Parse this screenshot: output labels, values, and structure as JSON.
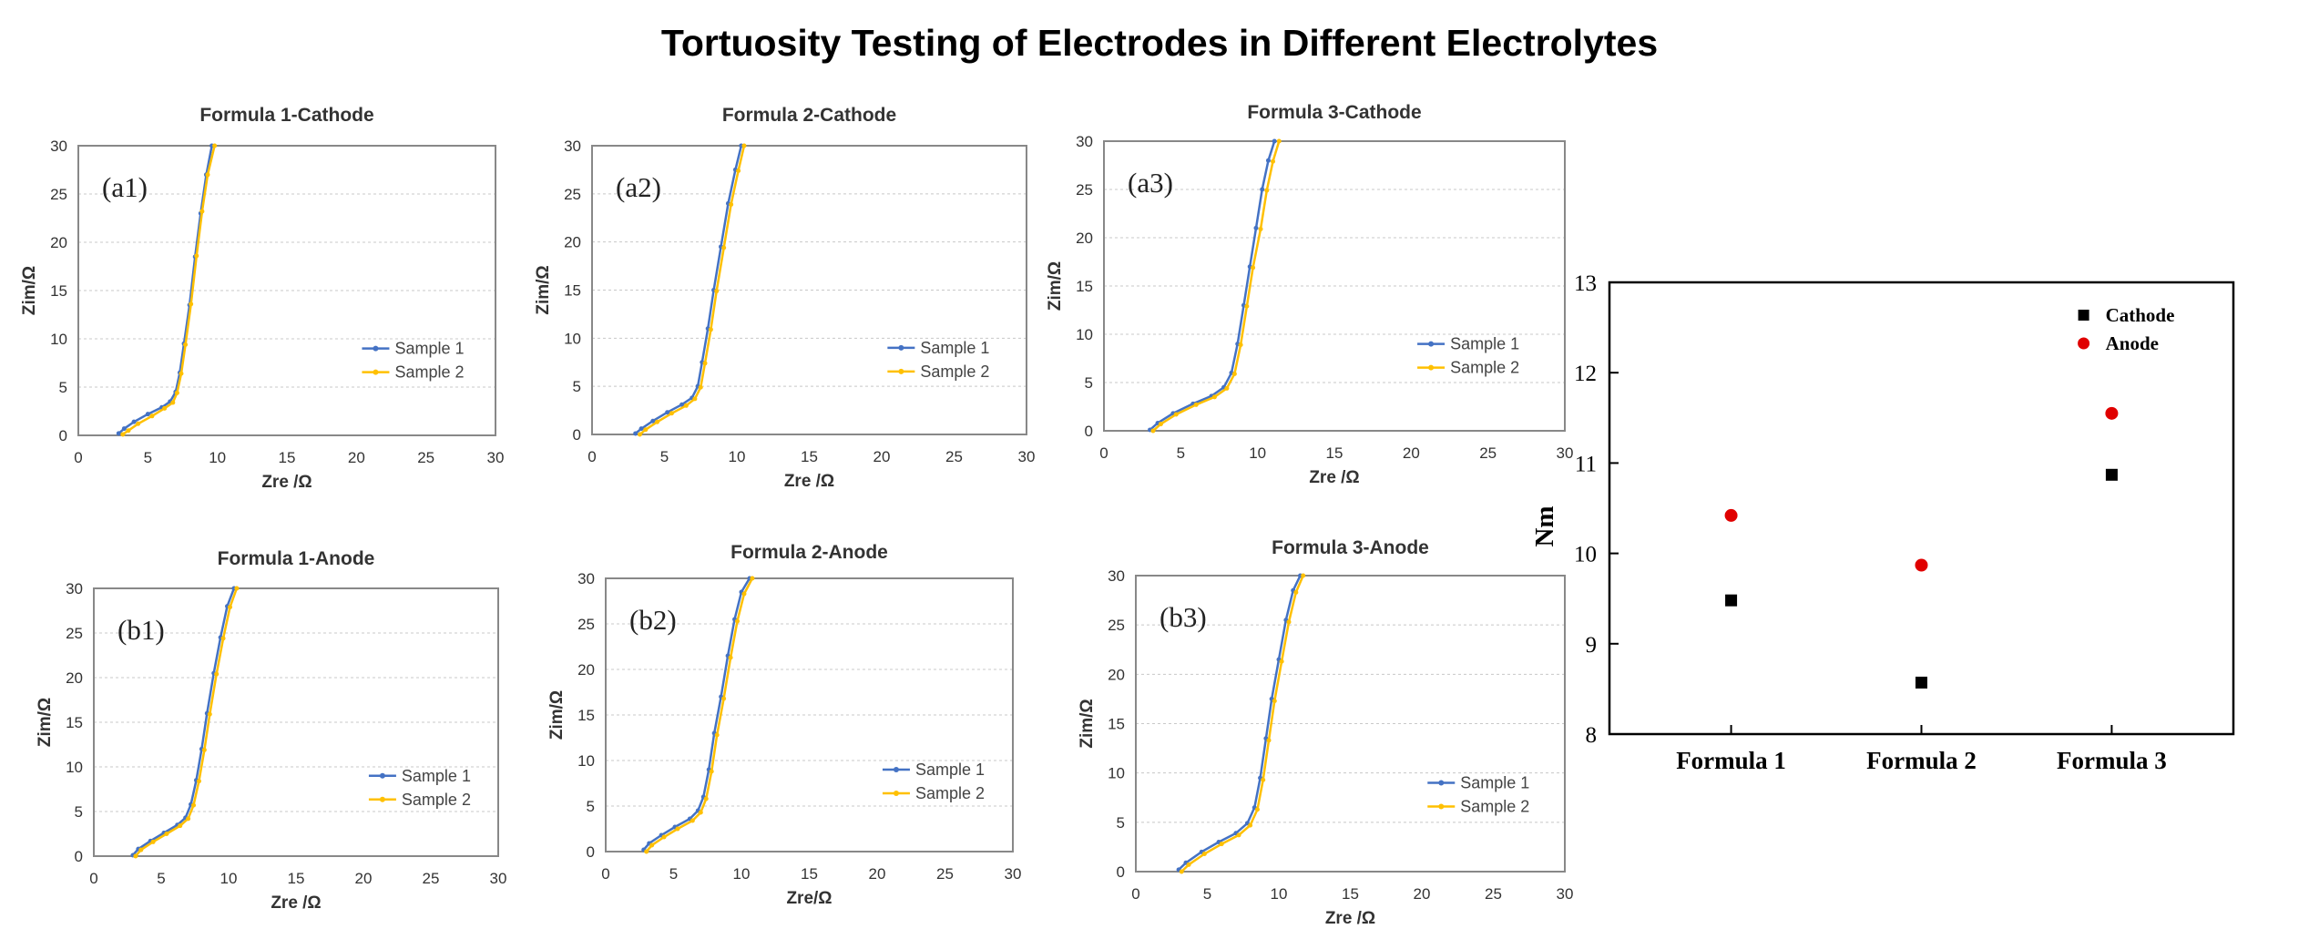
{
  "title": "Tortuosity Testing of Electrodes in Different Electrolytes",
  "colors": {
    "sample1": "#4472C4",
    "sample2": "#FFC000",
    "cathode": "#000000",
    "anode": "#E00000"
  },
  "chart_data": [
    {
      "id": "a1",
      "type": "line",
      "panel_label": "(a1)",
      "title": "Formula 1-Cathode",
      "xlabel": "Zre /Ω",
      "ylabel": "Zim/Ω",
      "xlim": [
        0,
        30
      ],
      "ylim": [
        0,
        30
      ],
      "xticks": [
        0,
        5,
        10,
        15,
        20,
        25,
        30
      ],
      "yticks": [
        0,
        5,
        10,
        15,
        20,
        25,
        30
      ],
      "grid": "horizontal",
      "legend": "right",
      "series": [
        {
          "name": "Sample 1",
          "x": [
            2.9,
            3.3,
            4.0,
            5.0,
            6.0,
            6.6,
            7.0,
            7.3,
            7.6,
            8.0,
            8.4,
            8.8,
            9.2,
            9.6
          ],
          "y": [
            0.2,
            0.7,
            1.4,
            2.2,
            2.9,
            3.5,
            4.5,
            6.5,
            9.5,
            13.5,
            18.5,
            23.0,
            27.0,
            30.0
          ]
        },
        {
          "name": "Sample 2",
          "x": [
            3.2,
            3.6,
            4.3,
            5.3,
            6.2,
            6.8,
            7.1,
            7.4,
            7.7,
            8.1,
            8.5,
            8.9,
            9.3,
            9.8
          ],
          "y": [
            0.1,
            0.5,
            1.2,
            2.0,
            2.8,
            3.4,
            4.4,
            6.4,
            9.4,
            13.6,
            18.6,
            23.2,
            27.0,
            30.0
          ]
        }
      ]
    },
    {
      "id": "a2",
      "type": "line",
      "panel_label": "(a2)",
      "title": "Formula 2-Cathode",
      "xlabel": "Zre /Ω",
      "ylabel": "Zim/Ω",
      "xlim": [
        0,
        30
      ],
      "ylim": [
        0,
        30
      ],
      "xticks": [
        0,
        5,
        10,
        15,
        20,
        25,
        30
      ],
      "yticks": [
        0,
        5,
        10,
        15,
        20,
        25,
        30
      ],
      "grid": "horizontal",
      "legend": "right",
      "series": [
        {
          "name": "Sample 1",
          "x": [
            3.0,
            3.4,
            4.2,
            5.2,
            6.2,
            6.9,
            7.3,
            7.6,
            8.0,
            8.4,
            8.9,
            9.4,
            9.9,
            10.3
          ],
          "y": [
            0.1,
            0.6,
            1.4,
            2.3,
            3.1,
            3.8,
            5.0,
            7.5,
            11.0,
            15.0,
            19.5,
            24.0,
            27.5,
            30.0
          ]
        },
        {
          "name": "Sample 2",
          "x": [
            3.3,
            3.7,
            4.5,
            5.5,
            6.5,
            7.1,
            7.5,
            7.8,
            8.2,
            8.6,
            9.1,
            9.6,
            10.1,
            10.5
          ],
          "y": [
            0.0,
            0.5,
            1.3,
            2.2,
            3.0,
            3.7,
            4.9,
            7.4,
            10.9,
            14.9,
            19.4,
            23.9,
            27.4,
            30.0
          ]
        }
      ]
    },
    {
      "id": "a3",
      "type": "line",
      "panel_label": "(a3)",
      "title": "Formula 3-Cathode",
      "xlabel": "Zre /Ω",
      "ylabel": "Zim/Ω",
      "xlim": [
        0,
        30
      ],
      "ylim": [
        0,
        30
      ],
      "xticks": [
        0,
        5,
        10,
        15,
        20,
        25,
        30
      ],
      "yticks": [
        0,
        5,
        10,
        15,
        20,
        25,
        30
      ],
      "grid": "horizontal",
      "legend": "right",
      "series": [
        {
          "name": "Sample 1",
          "x": [
            3.0,
            3.5,
            4.5,
            5.8,
            7.0,
            7.8,
            8.3,
            8.7,
            9.1,
            9.5,
            9.9,
            10.3,
            10.7,
            11.1
          ],
          "y": [
            0.1,
            0.8,
            1.8,
            2.8,
            3.6,
            4.5,
            6.0,
            9.0,
            13.0,
            17.0,
            21.0,
            25.0,
            28.0,
            30.0
          ]
        },
        {
          "name": "Sample 2",
          "x": [
            3.2,
            3.7,
            4.7,
            6.0,
            7.2,
            8.0,
            8.5,
            8.9,
            9.3,
            9.7,
            10.2,
            10.6,
            11.0,
            11.4
          ],
          "y": [
            0.0,
            0.7,
            1.7,
            2.7,
            3.5,
            4.4,
            5.9,
            8.9,
            12.9,
            16.9,
            20.9,
            24.9,
            27.9,
            30.0
          ]
        }
      ]
    },
    {
      "id": "b1",
      "type": "line",
      "panel_label": "(b1)",
      "title": "Formula 1-Anode",
      "xlabel": "Zre /Ω",
      "ylabel": "Zim/Ω",
      "xlim": [
        0,
        30
      ],
      "ylim": [
        0,
        30
      ],
      "xticks": [
        0,
        5,
        10,
        15,
        20,
        25,
        30
      ],
      "yticks": [
        0,
        5,
        10,
        15,
        20,
        25,
        30
      ],
      "grid": "horizontal",
      "legend": "right",
      "series": [
        {
          "name": "Sample 1",
          "x": [
            2.9,
            3.3,
            4.2,
            5.2,
            6.2,
            6.8,
            7.2,
            7.6,
            8.0,
            8.4,
            8.9,
            9.4,
            9.9,
            10.4
          ],
          "y": [
            0.1,
            0.8,
            1.7,
            2.6,
            3.5,
            4.3,
            5.8,
            8.5,
            12.0,
            16.0,
            20.5,
            24.5,
            28.0,
            30.0
          ]
        },
        {
          "name": "Sample 2",
          "x": [
            3.1,
            3.5,
            4.4,
            5.4,
            6.4,
            7.0,
            7.4,
            7.8,
            8.2,
            8.6,
            9.1,
            9.6,
            10.1,
            10.6
          ],
          "y": [
            0.0,
            0.7,
            1.6,
            2.5,
            3.4,
            4.2,
            5.7,
            8.4,
            11.9,
            15.9,
            20.4,
            24.4,
            27.9,
            30.0
          ]
        }
      ]
    },
    {
      "id": "b2",
      "type": "line",
      "panel_label": "(b2)",
      "title": "Formula 2-Anode",
      "xlabel": "Zre/Ω",
      "ylabel": "Zim/Ω",
      "xlim": [
        0,
        30
      ],
      "ylim": [
        0,
        30
      ],
      "xticks": [
        0,
        5,
        10,
        15,
        20,
        25,
        30
      ],
      "yticks": [
        0,
        5,
        10,
        15,
        20,
        25,
        30
      ],
      "grid": "horizontal",
      "legend": "right",
      "series": [
        {
          "name": "Sample 1",
          "x": [
            2.8,
            3.2,
            4.1,
            5.1,
            6.2,
            6.8,
            7.2,
            7.6,
            8.0,
            8.5,
            9.0,
            9.5,
            10.0,
            10.6
          ],
          "y": [
            0.2,
            0.9,
            1.8,
            2.7,
            3.6,
            4.5,
            6.0,
            9.0,
            13.0,
            17.0,
            21.5,
            25.5,
            28.5,
            30.0
          ]
        },
        {
          "name": "Sample 2",
          "x": [
            3.0,
            3.4,
            4.3,
            5.3,
            6.4,
            7.0,
            7.4,
            7.8,
            8.2,
            8.7,
            9.2,
            9.7,
            10.2,
            10.8
          ],
          "y": [
            0.0,
            0.7,
            1.6,
            2.5,
            3.4,
            4.3,
            5.8,
            8.8,
            12.8,
            16.8,
            21.3,
            25.3,
            28.3,
            30.0
          ]
        }
      ]
    },
    {
      "id": "b3",
      "type": "line",
      "panel_label": "(b3)",
      "title": "Formula 3-Anode",
      "xlabel": "Zre /Ω",
      "ylabel": "Zim/Ω",
      "xlim": [
        0,
        30
      ],
      "ylim": [
        0,
        30
      ],
      "xticks": [
        0,
        5,
        10,
        15,
        20,
        25,
        30
      ],
      "yticks": [
        0,
        5,
        10,
        15,
        20,
        25,
        30
      ],
      "grid": "horizontal",
      "legend": "right",
      "series": [
        {
          "name": "Sample 1",
          "x": [
            3.0,
            3.5,
            4.6,
            5.8,
            7.0,
            7.8,
            8.3,
            8.7,
            9.1,
            9.5,
            10.0,
            10.5,
            11.0,
            11.5
          ],
          "y": [
            0.2,
            0.9,
            2.0,
            3.0,
            3.9,
            4.9,
            6.5,
            9.5,
            13.5,
            17.5,
            21.5,
            25.5,
            28.5,
            30.0
          ]
        },
        {
          "name": "Sample 2",
          "x": [
            3.2,
            3.7,
            4.8,
            6.0,
            7.2,
            8.0,
            8.5,
            8.9,
            9.3,
            9.7,
            10.2,
            10.7,
            11.2,
            11.7
          ],
          "y": [
            0.0,
            0.7,
            1.8,
            2.8,
            3.7,
            4.7,
            6.3,
            9.3,
            13.3,
            17.3,
            21.3,
            25.3,
            28.3,
            30.0
          ]
        }
      ]
    },
    {
      "id": "nm",
      "type": "scatter",
      "title": "",
      "xlabel": "",
      "ylabel": "Nm",
      "ylim": [
        8,
        13
      ],
      "yticks": [
        8,
        9,
        10,
        11,
        12,
        13
      ],
      "categories": [
        "Formula 1",
        "Formula 2",
        "Formula 3"
      ],
      "grid": "none",
      "legend": "top-right",
      "series": [
        {
          "name": "Cathode",
          "values": [
            9.48,
            8.57,
            10.87
          ]
        },
        {
          "name": "Anode",
          "values": [
            10.42,
            9.87,
            11.55
          ]
        }
      ]
    }
  ]
}
